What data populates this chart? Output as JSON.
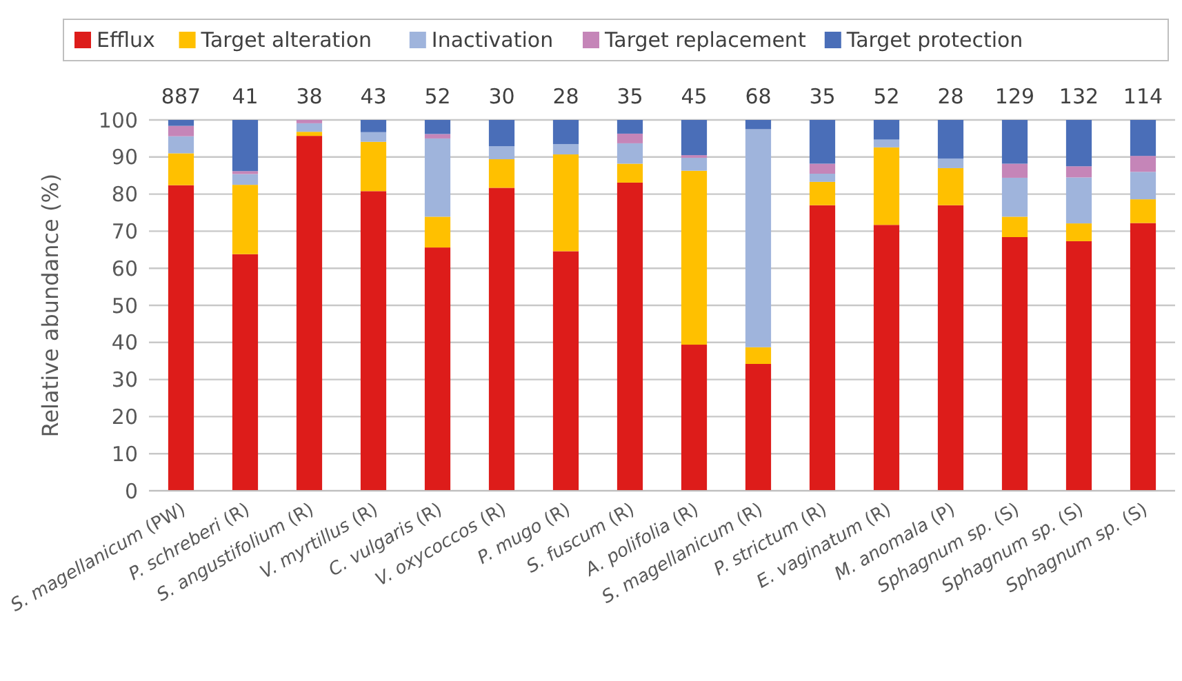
{
  "chart_data": {
    "type": "bar",
    "stacked": true,
    "ylabel": "Relative abundance (%)",
    "ylim": [
      0,
      100
    ],
    "yticks": [
      0,
      10,
      20,
      30,
      40,
      50,
      60,
      70,
      80,
      90,
      100
    ],
    "grid": "y",
    "legend": "top",
    "categories": [
      "S. magellanicum (PW)",
      "P. schreberi (R)",
      "S. angustifolium (R)",
      "V. myrtillus (R)",
      "C. vulgaris (R)",
      "V. oxycoccos (R)",
      "P. mugo (R)",
      "S. fuscum (R)",
      "A. polifolia (R)",
      "S. magellanicum (R)",
      "P. strictum (R)",
      "E. vaginatum (R)",
      "M. anomala (P)",
      "Sphagnum sp. (S)",
      "Sphagnum sp. (S)",
      "Sphagnum sp. (S)"
    ],
    "annotations": [
      "887",
      "41",
      "38",
      "43",
      "52",
      "30",
      "28",
      "35",
      "45",
      "68",
      "35",
      "52",
      "28",
      "129",
      "132",
      "114"
    ],
    "series": [
      {
        "name": "Efflux",
        "color": "#dd1c1a",
        "values": [
          82.4,
          63.8,
          95.7,
          80.8,
          65.6,
          81.7,
          64.6,
          83.1,
          39.4,
          34.2,
          77.0,
          71.7,
          77.0,
          68.4,
          67.3,
          72.2
        ]
      },
      {
        "name": "Target alteration",
        "color": "#ffc000",
        "values": [
          8.6,
          18.7,
          1.1,
          13.3,
          8.3,
          7.7,
          26.1,
          5.1,
          46.9,
          4.5,
          6.3,
          20.9,
          10.0,
          5.5,
          4.8,
          6.4
        ]
      },
      {
        "name": "Inactivation",
        "color": "#9fb4dc",
        "values": [
          4.6,
          2.9,
          2.3,
          2.6,
          21.1,
          3.5,
          2.8,
          5.5,
          3.5,
          58.8,
          2.2,
          2.1,
          2.6,
          10.5,
          12.4,
          7.4
        ]
      },
      {
        "name": "Target replacement",
        "color": "#c585b8",
        "values": [
          2.8,
          0.8,
          0.9,
          0,
          1.2,
          0,
          0,
          2.6,
          0.7,
          0,
          2.7,
          0,
          0,
          3.8,
          3.0,
          4.3
        ]
      },
      {
        "name": "Target protection",
        "color": "#4a6eb8",
        "values": [
          1.6,
          13.8,
          0,
          3.3,
          3.8,
          7.1,
          6.5,
          3.7,
          9.5,
          2.5,
          11.8,
          5.3,
          10.4,
          11.8,
          12.5,
          9.7
        ]
      }
    ]
  }
}
